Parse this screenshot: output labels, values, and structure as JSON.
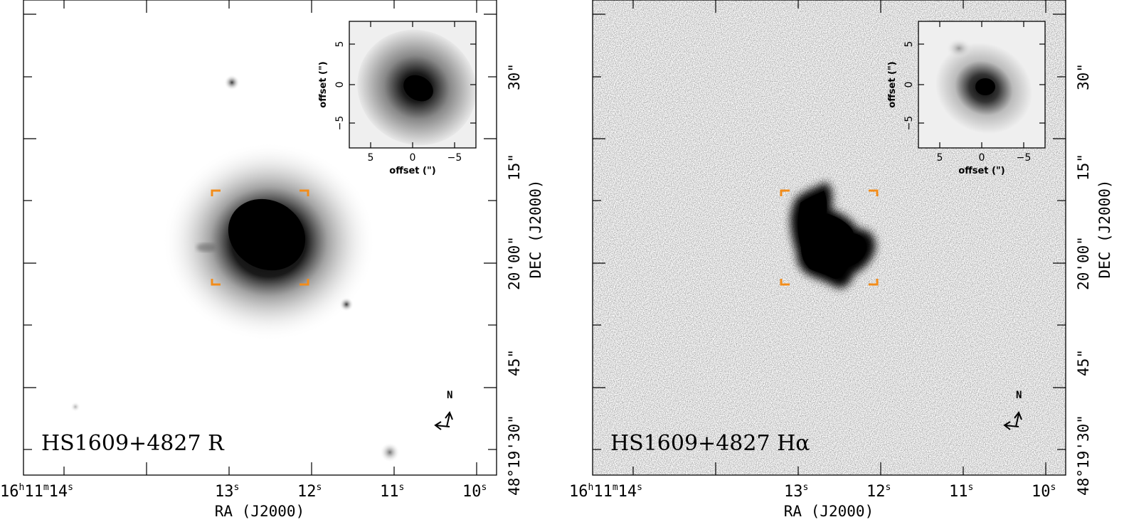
{
  "panels": [
    {
      "id": "left",
      "label": "HS1609+4827  R",
      "filter": "R",
      "xaxis": {
        "label": "RA (J2000)",
        "ticks": [
          {
            "pre": "16",
            "u1": "h",
            "mid": "11",
            "u2": "m",
            "post": "14",
            "u3": "s"
          },
          {
            "post": "13",
            "u3": "s"
          },
          {
            "post": "12",
            "u3": "s"
          },
          {
            "post": "11",
            "u3": "s"
          },
          {
            "post": "10",
            "u3": "s"
          }
        ]
      },
      "yaxis": {
        "label": "DEC (J2000)",
        "ticks": [
          "30\"",
          "15\"",
          "20'00\"",
          "45\"",
          "48°19'30\""
        ]
      },
      "compass": {
        "north": "N"
      },
      "inset": {
        "xlabel": "offset (\")",
        "ylabel": "offset (\")",
        "xticks": [
          "5",
          "0",
          "−5"
        ],
        "yticks": [
          "5",
          "0",
          "−5"
        ]
      }
    },
    {
      "id": "right",
      "label": "HS1609+4827  Hα",
      "filter": "Hα",
      "xaxis": {
        "label": "RA (J2000)",
        "ticks": [
          {
            "pre": "16",
            "u1": "h",
            "mid": "11",
            "u2": "m",
            "post": "14",
            "u3": "s"
          },
          {
            "post": "13",
            "u3": "s"
          },
          {
            "post": "12",
            "u3": "s"
          },
          {
            "post": "11",
            "u3": "s"
          },
          {
            "post": "10",
            "u3": "s"
          }
        ]
      },
      "yaxis": {
        "label": "DEC (J2000)",
        "ticks": [
          "30\"",
          "15\"",
          "20'00\"",
          "45\"",
          "48°19'30\""
        ]
      },
      "compass": {
        "north": "N"
      },
      "inset": {
        "xlabel": "offset (\")",
        "ylabel": "offset (\")",
        "xticks": [
          "5",
          "0",
          "−5"
        ],
        "yticks": [
          "5",
          "0",
          "−5"
        ]
      }
    }
  ],
  "colors": {
    "frame": "#000000",
    "bracket": "#f28c1a",
    "background": "#ffffff"
  }
}
